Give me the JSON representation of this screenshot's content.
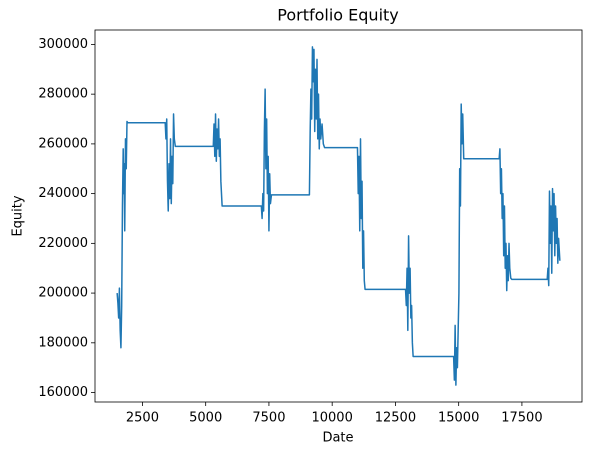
{
  "chart_data": {
    "type": "line",
    "title": "Portfolio Equity",
    "xlabel": "Date",
    "ylabel": "Equity",
    "xlim": [
      625,
      19875
    ],
    "ylim": [
      156200,
      305800
    ],
    "xticks": [
      2500,
      5000,
      7500,
      10000,
      12500,
      15000,
      17500
    ],
    "yticks": [
      160000,
      180000,
      200000,
      220000,
      240000,
      260000,
      280000,
      300000
    ],
    "grid": false,
    "series": [
      {
        "color": "#1f77b4",
        "x": [
          1500,
          1530,
          1560,
          1590,
          1620,
          1650,
          1680,
          1710,
          1740,
          1760,
          1780,
          1800,
          1830,
          1860,
          1890,
          1920,
          3400,
          3430,
          3460,
          3490,
          3520,
          3550,
          3580,
          3610,
          3640,
          3670,
          3700,
          3730,
          3760,
          3800,
          5300,
          5330,
          5360,
          5390,
          5420,
          5450,
          5480,
          5510,
          5540,
          5570,
          5600,
          5650,
          7200,
          7230,
          7260,
          7290,
          7320,
          7350,
          7380,
          7410,
          7440,
          7470,
          7500,
          7530,
          7560,
          7600,
          9100,
          9130,
          9160,
          9190,
          9220,
          9250,
          9280,
          9310,
          9340,
          9370,
          9400,
          9430,
          9460,
          9490,
          9520,
          9550,
          9600,
          9650,
          9700,
          11000,
          11030,
          11060,
          11090,
          11120,
          11150,
          11180,
          11210,
          11240,
          11270,
          11300,
          12900,
          12930,
          12960,
          12990,
          13020,
          13050,
          13080,
          13110,
          13140,
          13170,
          13200,
          14800,
          14830,
          14860,
          14890,
          14920,
          14950,
          14980,
          15010,
          15040,
          15070,
          15100,
          15130,
          15160,
          15200,
          16600,
          16630,
          16660,
          16690,
          16720,
          16750,
          16780,
          16810,
          16840,
          16870,
          16900,
          16930,
          16960,
          16990,
          17020,
          17060,
          17100,
          18500,
          18530,
          18560,
          18590,
          18620,
          18650,
          18680,
          18710,
          18740,
          18770,
          18800,
          18830,
          18860,
          18890,
          18920,
          18950,
          19000
        ],
        "values": [
          200000,
          196000,
          190000,
          202000,
          185000,
          178000,
          195000,
          235000,
          258000,
          240000,
          252000,
          225000,
          262000,
          250000,
          269000,
          268500,
          268500,
          262000,
          270000,
          245000,
          233000,
          252000,
          238000,
          262000,
          236000,
          255000,
          244000,
          272000,
          262000,
          259000,
          259000,
          268000,
          255000,
          272000,
          253000,
          266000,
          258000,
          270000,
          255000,
          262000,
          245000,
          235000,
          235000,
          230000,
          240000,
          233000,
          265000,
          282000,
          250000,
          270000,
          240000,
          255000,
          225000,
          248000,
          236000,
          239500,
          239500,
          265000,
          282000,
          270000,
          299000,
          285000,
          298000,
          265000,
          290000,
          270000,
          294000,
          262000,
          280000,
          258000,
          270000,
          262000,
          268000,
          260000,
          258500,
          258500,
          240000,
          255000,
          225000,
          262000,
          230000,
          245000,
          210000,
          225000,
          205000,
          201500,
          201500,
          195000,
          210000,
          185000,
          223000,
          200000,
          210000,
          190000,
          195000,
          180000,
          174500,
          174500,
          165000,
          187000,
          163000,
          178000,
          170000,
          185000,
          200000,
          250000,
          235000,
          276000,
          260000,
          272000,
          254000,
          254000,
          258000,
          240000,
          250000,
          230000,
          240000,
          215000,
          235000,
          210000,
          220000,
          201000,
          215000,
          205000,
          220000,
          210000,
          206000,
          205500,
          205500,
          210000,
          203000,
          241000,
          220000,
          235000,
          208000,
          242000,
          225000,
          240000,
          215000,
          235000,
          220000,
          230000,
          212000,
          222000,
          213000
        ]
      }
    ]
  }
}
